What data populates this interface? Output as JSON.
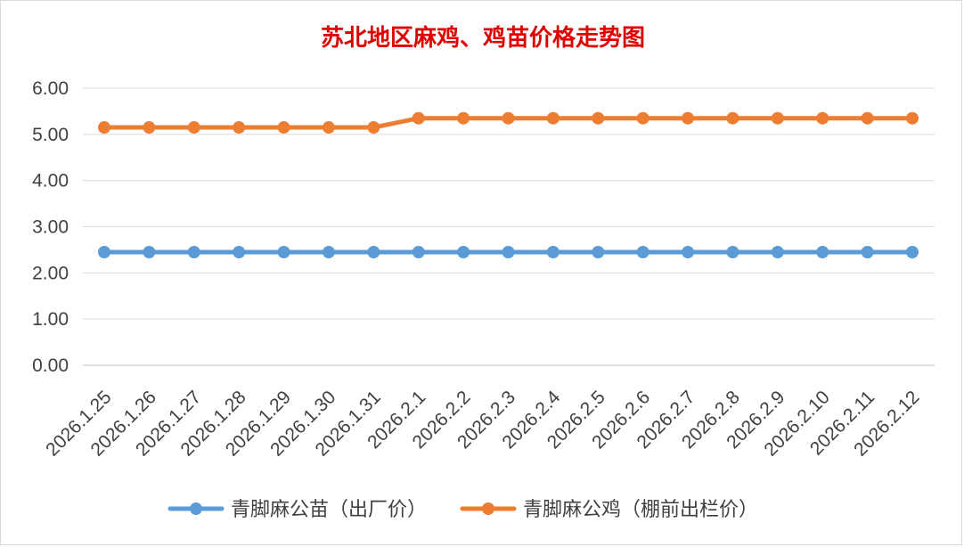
{
  "chart_data": {
    "type": "line",
    "title": "苏北地区麻鸡、鸡苗价格走势图",
    "xlabel": "",
    "ylabel": "",
    "categories": [
      "2026.1.25",
      "2026.1.26",
      "2026.1.27",
      "2026.1.28",
      "2026.1.29",
      "2026.1.30",
      "2026.1.31",
      "2026.2.1",
      "2026.2.2",
      "2026.2.3",
      "2026.2.4",
      "2026.2.5",
      "2026.2.6",
      "2026.2.7",
      "2026.2.8",
      "2026.2.9",
      "2026.2.10",
      "2026.2.11",
      "2026.2.12"
    ],
    "y_ticks": [
      "0.00",
      "1.00",
      "2.00",
      "3.00",
      "4.00",
      "5.00",
      "6.00"
    ],
    "ylim": [
      0,
      6
    ],
    "grid": true,
    "legend_position": "bottom",
    "series": [
      {
        "name": "青脚麻公苗（出厂价）",
        "color": "#5b9bd5",
        "values": [
          2.45,
          2.45,
          2.45,
          2.45,
          2.45,
          2.45,
          2.45,
          2.45,
          2.45,
          2.45,
          2.45,
          2.45,
          2.45,
          2.45,
          2.45,
          2.45,
          2.45,
          2.45,
          2.45
        ]
      },
      {
        "name": "青脚麻公鸡（棚前出栏价）",
        "color": "#ed7d31",
        "values": [
          5.15,
          5.15,
          5.15,
          5.15,
          5.15,
          5.15,
          5.15,
          5.35,
          5.35,
          5.35,
          5.35,
          5.35,
          5.35,
          5.35,
          5.35,
          5.35,
          5.35,
          5.35,
          5.35
        ]
      }
    ]
  }
}
